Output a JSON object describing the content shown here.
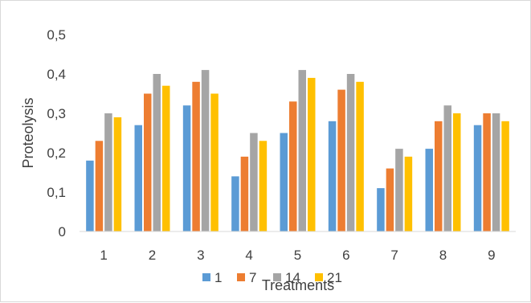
{
  "chart_data": {
    "type": "bar",
    "title": "",
    "xlabel": "Treatments",
    "ylabel": "Proteolysis",
    "categories": [
      "1",
      "2",
      "3",
      "4",
      "5",
      "6",
      "7",
      "8",
      "9"
    ],
    "ylim": [
      0,
      0.5
    ],
    "yticks": [
      "0",
      "0,1",
      "0,2",
      "0,3",
      "0,4",
      "0,5"
    ],
    "grid": false,
    "legend_position": "bottom",
    "series": [
      {
        "name": "1",
        "color": "#5b9bd5",
        "values": [
          0.18,
          0.27,
          0.32,
          0.14,
          0.25,
          0.28,
          0.11,
          0.21,
          0.27
        ]
      },
      {
        "name": "7",
        "color": "#ed7d31",
        "values": [
          0.23,
          0.35,
          0.38,
          0.19,
          0.33,
          0.36,
          0.16,
          0.28,
          0.3
        ]
      },
      {
        "name": "14",
        "color": "#a5a5a5",
        "values": [
          0.3,
          0.4,
          0.41,
          0.25,
          0.41,
          0.4,
          0.21,
          0.32,
          0.3
        ]
      },
      {
        "name": "21",
        "color": "#ffc000",
        "values": [
          0.29,
          0.37,
          0.35,
          0.23,
          0.39,
          0.38,
          0.19,
          0.3,
          0.28
        ]
      }
    ]
  }
}
